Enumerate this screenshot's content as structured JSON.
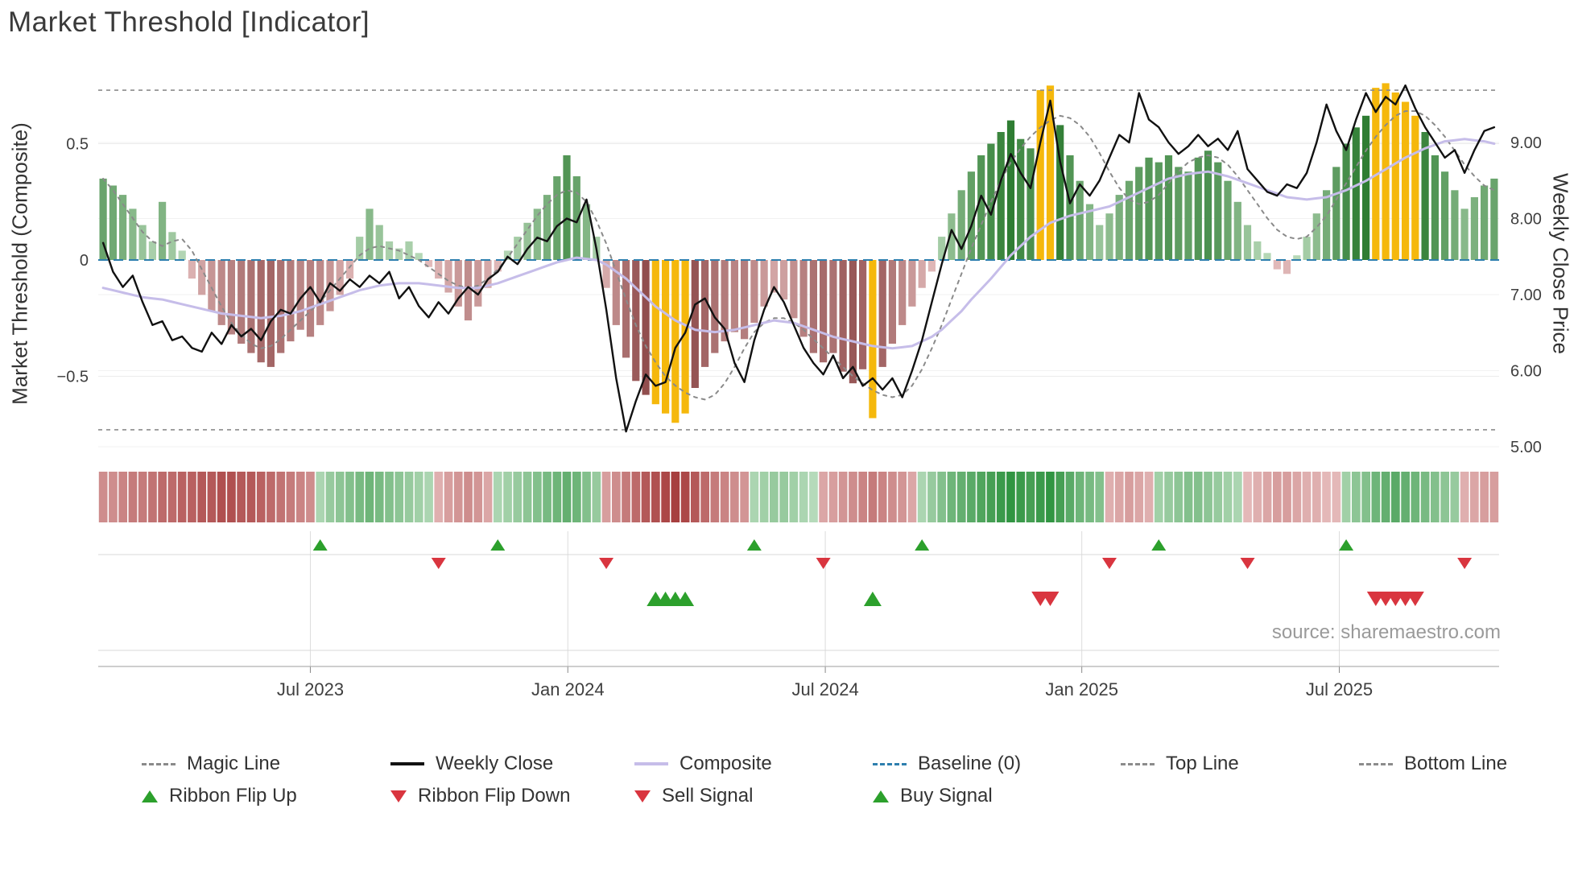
{
  "title": "Market Threshold [Indicator]",
  "source": "source: sharemaestro.com",
  "axes": {
    "left_label": "Market Threshold (Composite)",
    "right_label": "Weekly Close Price",
    "left_ticks": [
      {
        "value": 0.5,
        "label": "0.5"
      },
      {
        "value": 0,
        "label": "0"
      },
      {
        "value": -0.5,
        "label": "−0.5"
      }
    ],
    "right_ticks": [
      {
        "value": 9,
        "label": "9.00"
      },
      {
        "value": 8,
        "label": "8.00"
      },
      {
        "value": 7,
        "label": "7.00"
      },
      {
        "value": 6,
        "label": "6.00"
      },
      {
        "value": 5,
        "label": "5.00"
      }
    ],
    "x_ticks": {
      "positions": [
        21.0,
        47.1,
        73.2,
        99.2,
        125.3
      ],
      "labels": [
        "Jul 2023",
        "Jan 2024",
        "Jul 2024",
        "Jan 2025",
        "Jul 2025"
      ]
    }
  },
  "colors": {
    "weekly_close": "#111111",
    "composite_line": "#c6bde9",
    "magic_line": "#8a8a8a",
    "baseline": "#2e7fae",
    "top_bottom": "#8c8c8c",
    "gold": "#f5b80c",
    "bar_pos_light": "#d4ecd4",
    "bar_pos_dark": "#2f7d33",
    "bar_neg_light": "#f6d6d6",
    "bar_neg_dark": "#8e4a4a",
    "ribbon_pos_light": "#e8f5e8",
    "ribbon_pos_dark": "#1d8a2f",
    "ribbon_neg_light": "#f9e3e3",
    "ribbon_neg_dark": "#a33636",
    "signal_green": "#2ca02c",
    "signal_red": "#d9353f",
    "grid": "#ececec",
    "panel_line": "#d8d8d8",
    "spine": "#b0b0b0"
  },
  "legend": {
    "items": [
      {
        "label": "Magic Line",
        "swatch": "magic"
      },
      {
        "label": "Weekly Close",
        "swatch": "close"
      },
      {
        "label": "Composite",
        "swatch": "composite"
      },
      {
        "label": "Baseline (0)",
        "swatch": "baseline"
      },
      {
        "label": "Top Line",
        "swatch": "topline"
      },
      {
        "label": "Bottom Line",
        "swatch": "bottomline"
      },
      {
        "label": "Ribbon Flip Up",
        "swatch": "flipup"
      },
      {
        "label": "Ribbon Flip Down",
        "swatch": "flipdown"
      },
      {
        "label": "Sell Signal",
        "swatch": "sell"
      },
      {
        "label": "Buy Signal",
        "swatch": "buy"
      }
    ]
  },
  "chart_data": [
    {
      "name": "composite_histogram",
      "type": "bar",
      "x_unit": "week_index",
      "title": "Market Threshold (Composite) weekly histogram",
      "ylim": [
        -0.8,
        0.8
      ],
      "baseline": 0,
      "top_line": 0.73,
      "bottom_line": -0.73,
      "values": [
        0.35,
        0.32,
        0.28,
        0.22,
        0.15,
        0.08,
        0.25,
        0.12,
        0.04,
        -0.08,
        -0.15,
        -0.22,
        -0.28,
        -0.32,
        -0.36,
        -0.4,
        -0.44,
        -0.46,
        -0.4,
        -0.35,
        -0.3,
        -0.33,
        -0.28,
        -0.22,
        -0.15,
        -0.08,
        0.1,
        0.22,
        0.15,
        0.08,
        0.05,
        0.08,
        0.03,
        -0.03,
        -0.08,
        -0.14,
        -0.2,
        -0.26,
        -0.2,
        -0.12,
        -0.05,
        0.04,
        0.1,
        0.16,
        0.22,
        0.28,
        0.36,
        0.45,
        0.36,
        0.24,
        0.1,
        -0.12,
        -0.28,
        -0.42,
        -0.52,
        -0.58,
        -0.62,
        -0.66,
        -0.7,
        -0.66,
        -0.55,
        -0.46,
        -0.4,
        -0.35,
        -0.31,
        -0.34,
        -0.27,
        -0.2,
        -0.14,
        -0.17,
        -0.25,
        -0.33,
        -0.4,
        -0.44,
        -0.4,
        -0.48,
        -0.53,
        -0.47,
        -0.68,
        -0.46,
        -0.36,
        -0.28,
        -0.2,
        -0.12,
        -0.05,
        0.1,
        0.2,
        0.3,
        0.38,
        0.45,
        0.5,
        0.55,
        0.6,
        0.52,
        0.48,
        0.73,
        0.75,
        0.58,
        0.45,
        0.34,
        0.24,
        0.15,
        0.2,
        0.28,
        0.34,
        0.4,
        0.44,
        0.42,
        0.45,
        0.4,
        0.38,
        0.44,
        0.47,
        0.42,
        0.34,
        0.25,
        0.15,
        0.08,
        0.03,
        -0.04,
        -0.06,
        0.02,
        0.1,
        0.2,
        0.3,
        0.4,
        0.5,
        0.57,
        0.62,
        0.74,
        0.76,
        0.72,
        0.68,
        0.62,
        0.55,
        0.45,
        0.38,
        0.3,
        0.22,
        0.27,
        0.32,
        0.35
      ],
      "gold_highlight_weeks": [
        56,
        57,
        58,
        59,
        78,
        95,
        96,
        129,
        130,
        131,
        132,
        133
      ]
    },
    {
      "name": "overlay_lines",
      "type": "line",
      "series": [
        {
          "name": "Weekly Close",
          "axis": "right",
          "values": [
            7.68,
            7.3,
            7.1,
            7.25,
            6.9,
            6.6,
            6.65,
            6.4,
            6.45,
            6.3,
            6.25,
            6.5,
            6.35,
            6.6,
            6.45,
            6.55,
            6.4,
            6.65,
            6.8,
            6.75,
            6.95,
            7.1,
            6.9,
            7.15,
            7.05,
            7.2,
            7.1,
            7.25,
            7.15,
            7.3,
            6.95,
            7.1,
            6.85,
            6.7,
            6.9,
            6.75,
            6.95,
            7.1,
            7.0,
            7.2,
            7.3,
            7.5,
            7.4,
            7.6,
            7.75,
            7.7,
            7.9,
            8.0,
            7.95,
            8.25,
            7.6,
            6.8,
            5.9,
            5.2,
            5.6,
            5.95,
            5.8,
            5.85,
            6.3,
            6.5,
            6.87,
            6.95,
            6.7,
            6.55,
            6.1,
            5.85,
            6.4,
            6.8,
            7.1,
            6.9,
            6.6,
            6.3,
            6.1,
            5.95,
            6.2,
            5.9,
            6.05,
            5.8,
            5.9,
            5.75,
            5.9,
            5.65,
            6.0,
            6.4,
            6.9,
            7.4,
            7.85,
            7.6,
            7.9,
            8.3,
            8.05,
            8.5,
            8.85,
            8.6,
            8.4,
            9.0,
            9.55,
            8.75,
            8.2,
            8.45,
            8.3,
            8.5,
            8.8,
            9.1,
            9.0,
            9.65,
            9.3,
            9.2,
            9.0,
            8.85,
            8.95,
            9.1,
            8.95,
            9.05,
            8.9,
            9.15,
            8.65,
            8.5,
            8.35,
            8.3,
            8.45,
            8.4,
            8.6,
            9.0,
            9.5,
            9.15,
            8.9,
            9.3,
            9.65,
            9.4,
            9.6,
            9.5,
            9.75,
            9.45,
            9.2,
            9.0,
            8.8,
            8.9,
            8.6,
            8.9,
            9.15,
            9.2
          ]
        },
        {
          "name": "Composite",
          "axis": "left",
          "values": [
            -0.12,
            -0.13,
            -0.14,
            -0.15,
            -0.16,
            -0.165,
            -0.17,
            -0.18,
            -0.19,
            -0.2,
            -0.21,
            -0.22,
            -0.23,
            -0.235,
            -0.24,
            -0.245,
            -0.25,
            -0.245,
            -0.24,
            -0.23,
            -0.22,
            -0.205,
            -0.19,
            -0.175,
            -0.16,
            -0.145,
            -0.13,
            -0.12,
            -0.11,
            -0.105,
            -0.1,
            -0.1,
            -0.1,
            -0.105,
            -0.11,
            -0.115,
            -0.12,
            -0.12,
            -0.12,
            -0.11,
            -0.1,
            -0.085,
            -0.07,
            -0.055,
            -0.04,
            -0.025,
            -0.01,
            0.0,
            0.01,
            0.005,
            0.0,
            -0.02,
            -0.05,
            -0.08,
            -0.12,
            -0.16,
            -0.2,
            -0.23,
            -0.26,
            -0.28,
            -0.3,
            -0.305,
            -0.31,
            -0.305,
            -0.3,
            -0.29,
            -0.28,
            -0.27,
            -0.26,
            -0.265,
            -0.27,
            -0.285,
            -0.3,
            -0.315,
            -0.33,
            -0.34,
            -0.35,
            -0.36,
            -0.37,
            -0.375,
            -0.38,
            -0.375,
            -0.37,
            -0.35,
            -0.33,
            -0.3,
            -0.26,
            -0.22,
            -0.17,
            -0.125,
            -0.08,
            -0.03,
            0.02,
            0.06,
            0.1,
            0.13,
            0.16,
            0.175,
            0.19,
            0.2,
            0.21,
            0.22,
            0.23,
            0.25,
            0.27,
            0.29,
            0.31,
            0.33,
            0.35,
            0.36,
            0.37,
            0.375,
            0.38,
            0.37,
            0.36,
            0.345,
            0.33,
            0.315,
            0.3,
            0.285,
            0.27,
            0.265,
            0.26,
            0.265,
            0.27,
            0.285,
            0.3,
            0.32,
            0.34,
            0.365,
            0.39,
            0.415,
            0.44,
            0.46,
            0.48,
            0.495,
            0.51,
            0.515,
            0.52,
            0.515,
            0.51,
            0.5
          ]
        },
        {
          "name": "Magic Line",
          "axis": "left",
          "values": [
            0.35,
            0.3,
            0.24,
            0.18,
            0.12,
            0.08,
            0.06,
            0.08,
            0.09,
            0.04,
            -0.04,
            -0.12,
            -0.2,
            -0.27,
            -0.32,
            -0.36,
            -0.38,
            -0.37,
            -0.34,
            -0.3,
            -0.26,
            -0.22,
            -0.18,
            -0.13,
            -0.08,
            -0.03,
            0.02,
            0.05,
            0.06,
            0.05,
            0.04,
            0.02,
            0.0,
            -0.03,
            -0.06,
            -0.09,
            -0.11,
            -0.12,
            -0.11,
            -0.08,
            -0.04,
            0.01,
            0.07,
            0.13,
            0.19,
            0.24,
            0.28,
            0.3,
            0.29,
            0.25,
            0.17,
            0.07,
            -0.05,
            -0.17,
            -0.28,
            -0.37,
            -0.44,
            -0.5,
            -0.54,
            -0.57,
            -0.59,
            -0.6,
            -0.58,
            -0.53,
            -0.46,
            -0.38,
            -0.31,
            -0.27,
            -0.25,
            -0.25,
            -0.27,
            -0.3,
            -0.34,
            -0.38,
            -0.42,
            -0.46,
            -0.5,
            -0.53,
            -0.56,
            -0.58,
            -0.59,
            -0.58,
            -0.54,
            -0.47,
            -0.38,
            -0.28,
            -0.17,
            -0.06,
            0.05,
            0.15,
            0.25,
            0.34,
            0.42,
            0.48,
            0.53,
            0.57,
            0.6,
            0.62,
            0.61,
            0.58,
            0.53,
            0.46,
            0.38,
            0.31,
            0.26,
            0.24,
            0.25,
            0.28,
            0.33,
            0.38,
            0.42,
            0.44,
            0.45,
            0.44,
            0.41,
            0.36,
            0.3,
            0.24,
            0.18,
            0.13,
            0.1,
            0.09,
            0.1,
            0.14,
            0.19,
            0.26,
            0.33,
            0.4,
            0.47,
            0.53,
            0.58,
            0.62,
            0.64,
            0.64,
            0.62,
            0.58,
            0.53,
            0.47,
            0.41,
            0.36,
            0.32,
            0.3
          ]
        }
      ]
    },
    {
      "name": "trend_ribbon",
      "type": "heatmap",
      "description": "weekly trend strip, negative=red positive=green",
      "values": [
        -0.5,
        -0.5,
        -0.55,
        -0.6,
        -0.6,
        -0.65,
        -0.7,
        -0.7,
        -0.75,
        -0.75,
        -0.8,
        -0.8,
        -0.85,
        -0.85,
        -0.8,
        -0.8,
        -0.75,
        -0.7,
        -0.65,
        -0.6,
        -0.55,
        -0.5,
        0.3,
        0.4,
        0.45,
        0.5,
        0.55,
        0.6,
        0.55,
        0.5,
        0.45,
        0.4,
        0.35,
        0.3,
        -0.3,
        -0.4,
        -0.45,
        -0.5,
        -0.45,
        -0.35,
        0.3,
        0.35,
        0.4,
        0.45,
        0.5,
        0.55,
        0.6,
        0.65,
        0.6,
        0.5,
        0.4,
        -0.4,
        -0.5,
        -0.6,
        -0.7,
        -0.8,
        -0.85,
        -0.9,
        -0.95,
        -0.9,
        -0.8,
        -0.7,
        -0.6,
        -0.55,
        -0.5,
        -0.45,
        0.3,
        0.35,
        0.4,
        0.4,
        0.35,
        0.3,
        0.25,
        -0.35,
        -0.4,
        -0.45,
        -0.5,
        -0.55,
        -0.6,
        -0.55,
        -0.5,
        -0.45,
        -0.35,
        0.3,
        0.4,
        0.5,
        0.6,
        0.65,
        0.7,
        0.75,
        0.8,
        0.85,
        0.9,
        0.85,
        0.8,
        0.85,
        0.9,
        0.8,
        0.7,
        0.6,
        0.55,
        0.5,
        -0.3,
        -0.35,
        -0.4,
        -0.35,
        -0.3,
        0.35,
        0.4,
        0.45,
        0.5,
        0.5,
        0.45,
        0.4,
        0.35,
        0.3,
        -0.25,
        -0.3,
        -0.35,
        -0.4,
        -0.4,
        -0.35,
        -0.3,
        -0.3,
        -0.25,
        -0.25,
        0.35,
        0.45,
        0.5,
        0.6,
        0.65,
        0.7,
        0.65,
        0.6,
        0.55,
        0.5,
        0.45,
        0.4,
        -0.3,
        -0.35,
        -0.4,
        -0.4
      ]
    },
    {
      "name": "signals",
      "type": "scatter",
      "ribbon_flip_up_weeks": [
        22,
        40,
        66,
        83,
        107,
        126
      ],
      "ribbon_flip_down_weeks": [
        34,
        51,
        73,
        102,
        116,
        138
      ],
      "buy_signal_weeks": [
        56,
        57,
        58,
        59,
        78
      ],
      "sell_signal_weeks": [
        95,
        96,
        129,
        130,
        131,
        132,
        133
      ]
    }
  ]
}
